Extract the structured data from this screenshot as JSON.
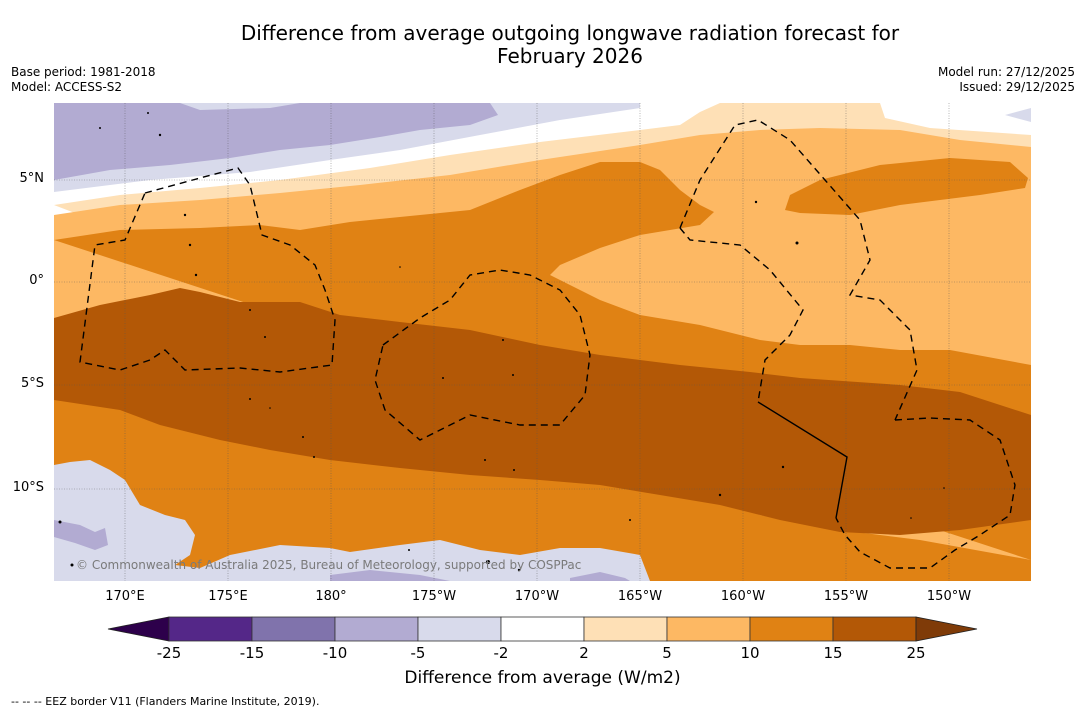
{
  "header": {
    "title_line1": "Difference from average outgoing longwave radiation forecast for",
    "title_line2": "February 2026",
    "base_period": "Base period: 1981-2018",
    "model": "Model: ACCESS-S2",
    "model_run": "Model run: 27/12/2025",
    "issued": "Issued: 29/12/2025"
  },
  "map": {
    "lat_labels": [
      "5°N",
      "0°",
      "5°S",
      "10°S"
    ],
    "lon_labels": [
      "170°E",
      "175°E",
      "180°",
      "175°W",
      "170°W",
      "165°W",
      "160°W",
      "155°W",
      "150°W"
    ],
    "copyright": "© Commonwealth of Australia 2025, Bureau of Meteorology, supported by COSPPac",
    "overlay_line_style": "dashed",
    "overlay_layer": "EEZ borders"
  },
  "colorbar": {
    "ticks": [
      "-25",
      "-15",
      "-10",
      "-5",
      "-2",
      "2",
      "5",
      "10",
      "15",
      "25"
    ],
    "label": "Difference from average (W/m2)",
    "bins": [
      {
        "range": "< -25",
        "color": "#2d004b"
      },
      {
        "range": "-25 to -15",
        "color": "#542788"
      },
      {
        "range": "-15 to -10",
        "color": "#8073ac"
      },
      {
        "range": "-10 to -5",
        "color": "#b2abd2"
      },
      {
        "range": "-5 to -2",
        "color": "#d8daeb"
      },
      {
        "range": "-2 to 2",
        "color": "#ffffff"
      },
      {
        "range": "2 to 5",
        "color": "#fee0b6"
      },
      {
        "range": "5 to 10",
        "color": "#fdb863"
      },
      {
        "range": "10 to 15",
        "color": "#e08214"
      },
      {
        "range": "15 to 25",
        "color": "#b35806"
      },
      {
        "range": "> 25",
        "color": "#7f3b08"
      }
    ]
  },
  "footnote": "--  --  -- EEZ border V11 (Flanders Marine Institute, 2019)."
}
